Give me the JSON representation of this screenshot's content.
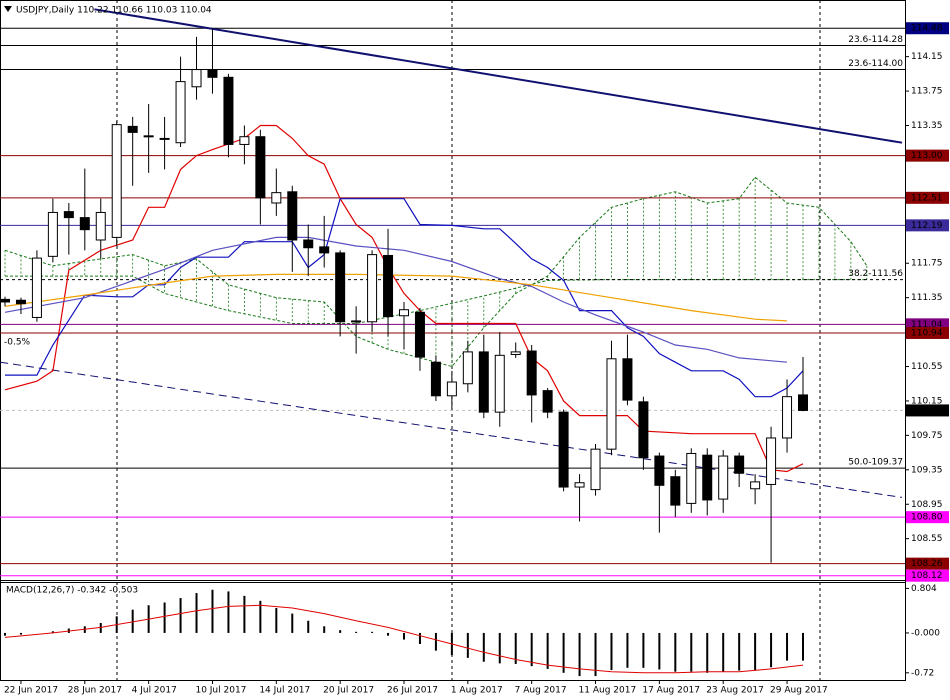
{
  "chart_data": [
    {
      "type": "candlestick",
      "title": "USDJPY,Daily  110.22 110.66 110.03 110.04",
      "ylim": [
        108.07,
        114.75
      ],
      "yticks": [
        114.15,
        113.75,
        113.35,
        111.75,
        111.35,
        110.55,
        110.15,
        109.75,
        109.35,
        108.95,
        108.55
      ],
      "xticks": [
        {
          "value": 1,
          "label": "22 Jun 2017"
        },
        {
          "value": 5,
          "label": "28 Jun 2017"
        },
        {
          "value": 9,
          "label": "4 Jul 2017"
        },
        {
          "value": 13,
          "label": "10 Jul 2017"
        },
        {
          "value": 17,
          "label": "14 Jul 2017"
        },
        {
          "value": 21,
          "label": "20 Jul 2017"
        },
        {
          "value": 25,
          "label": "26 Jul 2017"
        },
        {
          "value": 29,
          "label": "1 Aug 2017"
        },
        {
          "value": 33,
          "label": "7 Aug 2017"
        },
        {
          "value": 37,
          "label": "11 Aug 2017"
        },
        {
          "value": 41,
          "label": "17 Aug 2017"
        },
        {
          "value": 45,
          "label": "23 Aug 2017"
        },
        {
          "value": 49,
          "label": "29 Aug 2017"
        }
      ],
      "open": [
        111.33,
        111.32,
        111.12,
        111.83,
        112.35,
        112.28,
        112.02,
        112.05,
        113.34,
        113.23,
        113.2,
        113.15,
        113.8,
        114.0,
        113.91,
        113.13,
        113.22,
        112.45,
        112.58,
        112.02,
        111.94,
        111.87,
        111.07,
        111.07,
        111.84,
        111.14,
        111.18,
        110.6,
        110.21,
        110.35,
        110.72,
        110.02,
        110.69,
        110.73,
        110.27,
        110.02,
        109.15,
        109.12,
        109.59,
        110.64,
        110.14,
        109.51,
        109.27,
        108.96,
        109.52,
        109.01,
        109.51,
        109.13,
        109.18,
        109.72,
        110.22
      ],
      "high": [
        111.36,
        111.35,
        111.9,
        112.5,
        112.45,
        112.85,
        112.5,
        113.4,
        113.45,
        113.6,
        113.45,
        114.15,
        114.38,
        114.48,
        113.95,
        113.35,
        113.3,
        112.85,
        112.65,
        112.2,
        112.3,
        111.9,
        111.25,
        111.9,
        112.15,
        111.3,
        111.23,
        110.68,
        110.5,
        110.85,
        110.92,
        110.95,
        110.83,
        110.8,
        110.3,
        110.05,
        109.3,
        109.65,
        110.85,
        110.92,
        110.2,
        109.55,
        109.35,
        109.6,
        109.6,
        109.58,
        109.55,
        109.3,
        109.85,
        110.4,
        110.66
      ],
      "low": [
        111.25,
        111.16,
        111.07,
        111.76,
        111.85,
        111.9,
        111.8,
        111.95,
        112.65,
        112.8,
        112.84,
        113.1,
        113.65,
        113.72,
        112.98,
        112.9,
        112.2,
        112.3,
        111.65,
        111.6,
        111.7,
        110.9,
        110.7,
        110.95,
        110.9,
        110.75,
        110.5,
        110.15,
        110.05,
        110.25,
        109.95,
        109.85,
        110.65,
        109.9,
        109.95,
        109.1,
        108.75,
        109.05,
        109.52,
        110.1,
        109.35,
        108.62,
        108.8,
        108.85,
        108.82,
        108.85,
        109.15,
        108.95,
        108.27,
        109.55,
        110.03
      ],
      "close": [
        111.3,
        111.28,
        111.81,
        112.34,
        112.28,
        112.14,
        112.34,
        113.36,
        113.27,
        113.22,
        113.19,
        113.86,
        114.0,
        113.91,
        113.13,
        113.22,
        112.51,
        112.57,
        112.02,
        111.93,
        111.87,
        111.07,
        111.08,
        111.85,
        111.13,
        111.21,
        110.66,
        110.21,
        110.37,
        110.72,
        110.02,
        110.68,
        110.72,
        110.22,
        110.02,
        109.15,
        109.2,
        109.59,
        110.64,
        110.16,
        109.49,
        109.17,
        108.94,
        109.54,
        109.0,
        109.51,
        109.31,
        109.21,
        109.72,
        110.2,
        110.04
      ],
      "bull_color": "#ffffff",
      "bear_color": "#000000",
      "cloud": {
        "color": "#1a7a1a",
        "span_a": {
          "x": [
            0,
            3,
            6,
            8,
            10,
            12,
            14,
            17,
            20,
            22,
            24,
            26,
            28,
            30,
            32,
            34,
            36,
            38,
            40,
            42,
            44,
            46,
            47,
            49,
            51,
            53,
            54
          ],
          "values": [
            111.9,
            111.72,
            111.8,
            111.85,
            111.72,
            111.8,
            111.5,
            111.35,
            111.3,
            110.9,
            110.75,
            110.65,
            110.55,
            111.0,
            111.4,
            111.6,
            112.05,
            112.4,
            112.5,
            112.58,
            112.45,
            112.5,
            112.75,
            112.45,
            112.4,
            112.0,
            111.72
          ]
        },
        "span_b": {
          "x": [
            0,
            8,
            10,
            14,
            18,
            22,
            26,
            30,
            34,
            38,
            54
          ],
          "values": [
            111.6,
            111.6,
            111.4,
            111.2,
            111.05,
            111.05,
            111.2,
            111.37,
            111.55,
            111.56,
            111.56
          ]
        }
      },
      "lines": [
        {
          "color": "#e00000",
          "x": [
            0,
            2,
            3,
            4,
            6,
            8,
            9,
            10,
            11,
            12,
            13,
            15,
            16,
            17,
            18,
            19,
            20,
            21,
            22,
            23,
            24,
            25,
            26,
            27,
            28,
            31,
            32,
            33,
            34,
            35,
            36,
            39,
            40,
            43,
            47,
            48,
            49,
            50
          ],
          "values": [
            110.28,
            110.38,
            110.5,
            111.67,
            111.9,
            112.02,
            112.4,
            112.4,
            112.84,
            113.0,
            113.07,
            113.2,
            113.35,
            113.35,
            113.2,
            113.0,
            112.9,
            112.5,
            112.2,
            112.05,
            111.7,
            111.4,
            111.2,
            111.05,
            111.05,
            111.05,
            111.05,
            110.65,
            110.5,
            110.15,
            109.98,
            109.98,
            109.8,
            109.77,
            109.77,
            109.35,
            109.33,
            109.42
          ]
        },
        {
          "color": "#1010c0",
          "x": [
            0,
            2,
            3,
            5,
            7,
            8,
            9,
            10,
            11,
            12,
            14,
            15,
            18,
            19,
            20,
            21,
            25,
            26,
            28,
            30,
            31,
            32,
            33,
            34,
            35,
            36,
            38,
            39,
            40,
            41,
            42,
            43,
            45,
            46,
            47,
            48,
            49,
            50
          ],
          "values": [
            110.45,
            110.45,
            110.8,
            111.38,
            111.36,
            111.36,
            111.5,
            111.5,
            111.7,
            111.82,
            111.82,
            112.0,
            112.0,
            111.7,
            111.85,
            112.5,
            112.5,
            112.2,
            112.19,
            112.15,
            112.15,
            111.98,
            111.8,
            111.7,
            111.55,
            111.2,
            111.2,
            111.0,
            110.9,
            110.7,
            110.6,
            110.5,
            110.5,
            110.4,
            110.2,
            110.2,
            110.3,
            110.5
          ]
        },
        {
          "color": "#5a50c0",
          "x": [
            0,
            5,
            10,
            13,
            17,
            19,
            22,
            25,
            28,
            31,
            33,
            35,
            37,
            40,
            42,
            44,
            46,
            49
          ],
          "values": [
            111.18,
            111.35,
            111.68,
            111.9,
            112.05,
            112.05,
            111.95,
            111.9,
            111.77,
            111.57,
            111.48,
            111.3,
            111.15,
            110.95,
            110.8,
            110.75,
            110.65,
            110.6
          ]
        },
        {
          "color": "#f0a000",
          "x": [
            0,
            5,
            10,
            13,
            17,
            22,
            28,
            33,
            38,
            43,
            47,
            49
          ],
          "values": [
            111.25,
            111.38,
            111.52,
            111.6,
            111.62,
            111.62,
            111.6,
            111.5,
            111.35,
            111.2,
            111.1,
            111.08
          ]
        }
      ],
      "trendlines": [
        {
          "color": "#101070",
          "width": 2,
          "dashed": false,
          "x": [
            5.6,
            56.2
          ],
          "values": [
            114.7,
            113.15
          ]
        },
        {
          "color": "#101070",
          "width": 1,
          "dashed": true,
          "x": [
            -0.3,
            56.2
          ],
          "values": [
            110.6,
            109.03
          ],
          "label": "-0.5%"
        }
      ],
      "levels": [
        {
          "value": 114.48,
          "label": "114.48",
          "color": "#000000",
          "box": "#000080"
        },
        {
          "value": 114.28,
          "label": "23.6-114.28",
          "color": "#000000",
          "text_color": "#000000"
        },
        {
          "value": 114.0,
          "label": "23.6-114.00",
          "color": "#000000",
          "text_color": "#0000cc"
        },
        {
          "value": 113.0,
          "label": "113.00",
          "color": "#8b0000",
          "box": "#8b0000"
        },
        {
          "value": 112.51,
          "label": "112.51",
          "color": "#8b0000",
          "box": "#8b0000"
        },
        {
          "value": 112.19,
          "label": "112.19",
          "color": "#3a2a9a",
          "box": "#3a2a9a"
        },
        {
          "value": 111.56,
          "label": "38.2-111.56",
          "color": "#000000",
          "text_color": "#000000",
          "dashed": true
        },
        {
          "value": 111.04,
          "label": "111.04",
          "color": "#800080",
          "box": "#800080"
        },
        {
          "value": 110.94,
          "label": "110.94",
          "color": "#8b0000",
          "box": "#8b0000"
        },
        {
          "value": 110.04,
          "label": "110.04",
          "color": "#c0c0c0",
          "box": "#000000",
          "dashed": true
        },
        {
          "value": 109.37,
          "label": "50.0-109.37",
          "color": "#000000",
          "text_color": "#000000"
        },
        {
          "value": 108.8,
          "label": "108.80",
          "color": "#ff00ff",
          "box": "#ff00ff"
        },
        {
          "value": 108.26,
          "label": "108.26",
          "color": "#8b0000",
          "box": "#8b0000"
        },
        {
          "value": 108.12,
          "label": "108.12",
          "color": "#ff00ff",
          "box": "#ff00ff"
        }
      ]
    },
    {
      "type": "macd",
      "title": "MACD(12,26,7) -0.342 -0.503",
      "ylim": [
        -0.85,
        0.92
      ],
      "yticks": [
        0.804,
        {
          "value": 0,
          "label": "-0.000"
        },
        -0.72
      ],
      "color": "#000000",
      "values": [
        -0.05,
        -0.03,
        0.0,
        0.03,
        0.08,
        0.12,
        0.18,
        0.3,
        0.42,
        0.5,
        0.55,
        0.63,
        0.72,
        0.78,
        0.75,
        0.67,
        0.58,
        0.45,
        0.35,
        0.22,
        0.12,
        0.05,
        0.02,
        0.02,
        -0.05,
        -0.12,
        -0.2,
        -0.32,
        -0.4,
        -0.45,
        -0.52,
        -0.55,
        -0.56,
        -0.6,
        -0.65,
        -0.72,
        -0.78,
        -0.78,
        -0.67,
        -0.63,
        -0.63,
        -0.66,
        -0.7,
        -0.7,
        -0.72,
        -0.7,
        -0.68,
        -0.68,
        -0.62,
        -0.5,
        -0.5
      ],
      "signal": {
        "color": "#e00000",
        "x": [
          0,
          3,
          6,
          9,
          12,
          14,
          16,
          18,
          20,
          22,
          24,
          26,
          28,
          30,
          32,
          34,
          36,
          38,
          40,
          42,
          44,
          46,
          48,
          50
        ],
        "values": [
          -0.08,
          0.0,
          0.1,
          0.25,
          0.4,
          0.48,
          0.5,
          0.45,
          0.35,
          0.22,
          0.1,
          -0.05,
          -0.2,
          -0.35,
          -0.48,
          -0.58,
          -0.65,
          -0.7,
          -0.72,
          -0.72,
          -0.7,
          -0.7,
          -0.65,
          -0.58
        ]
      }
    }
  ]
}
